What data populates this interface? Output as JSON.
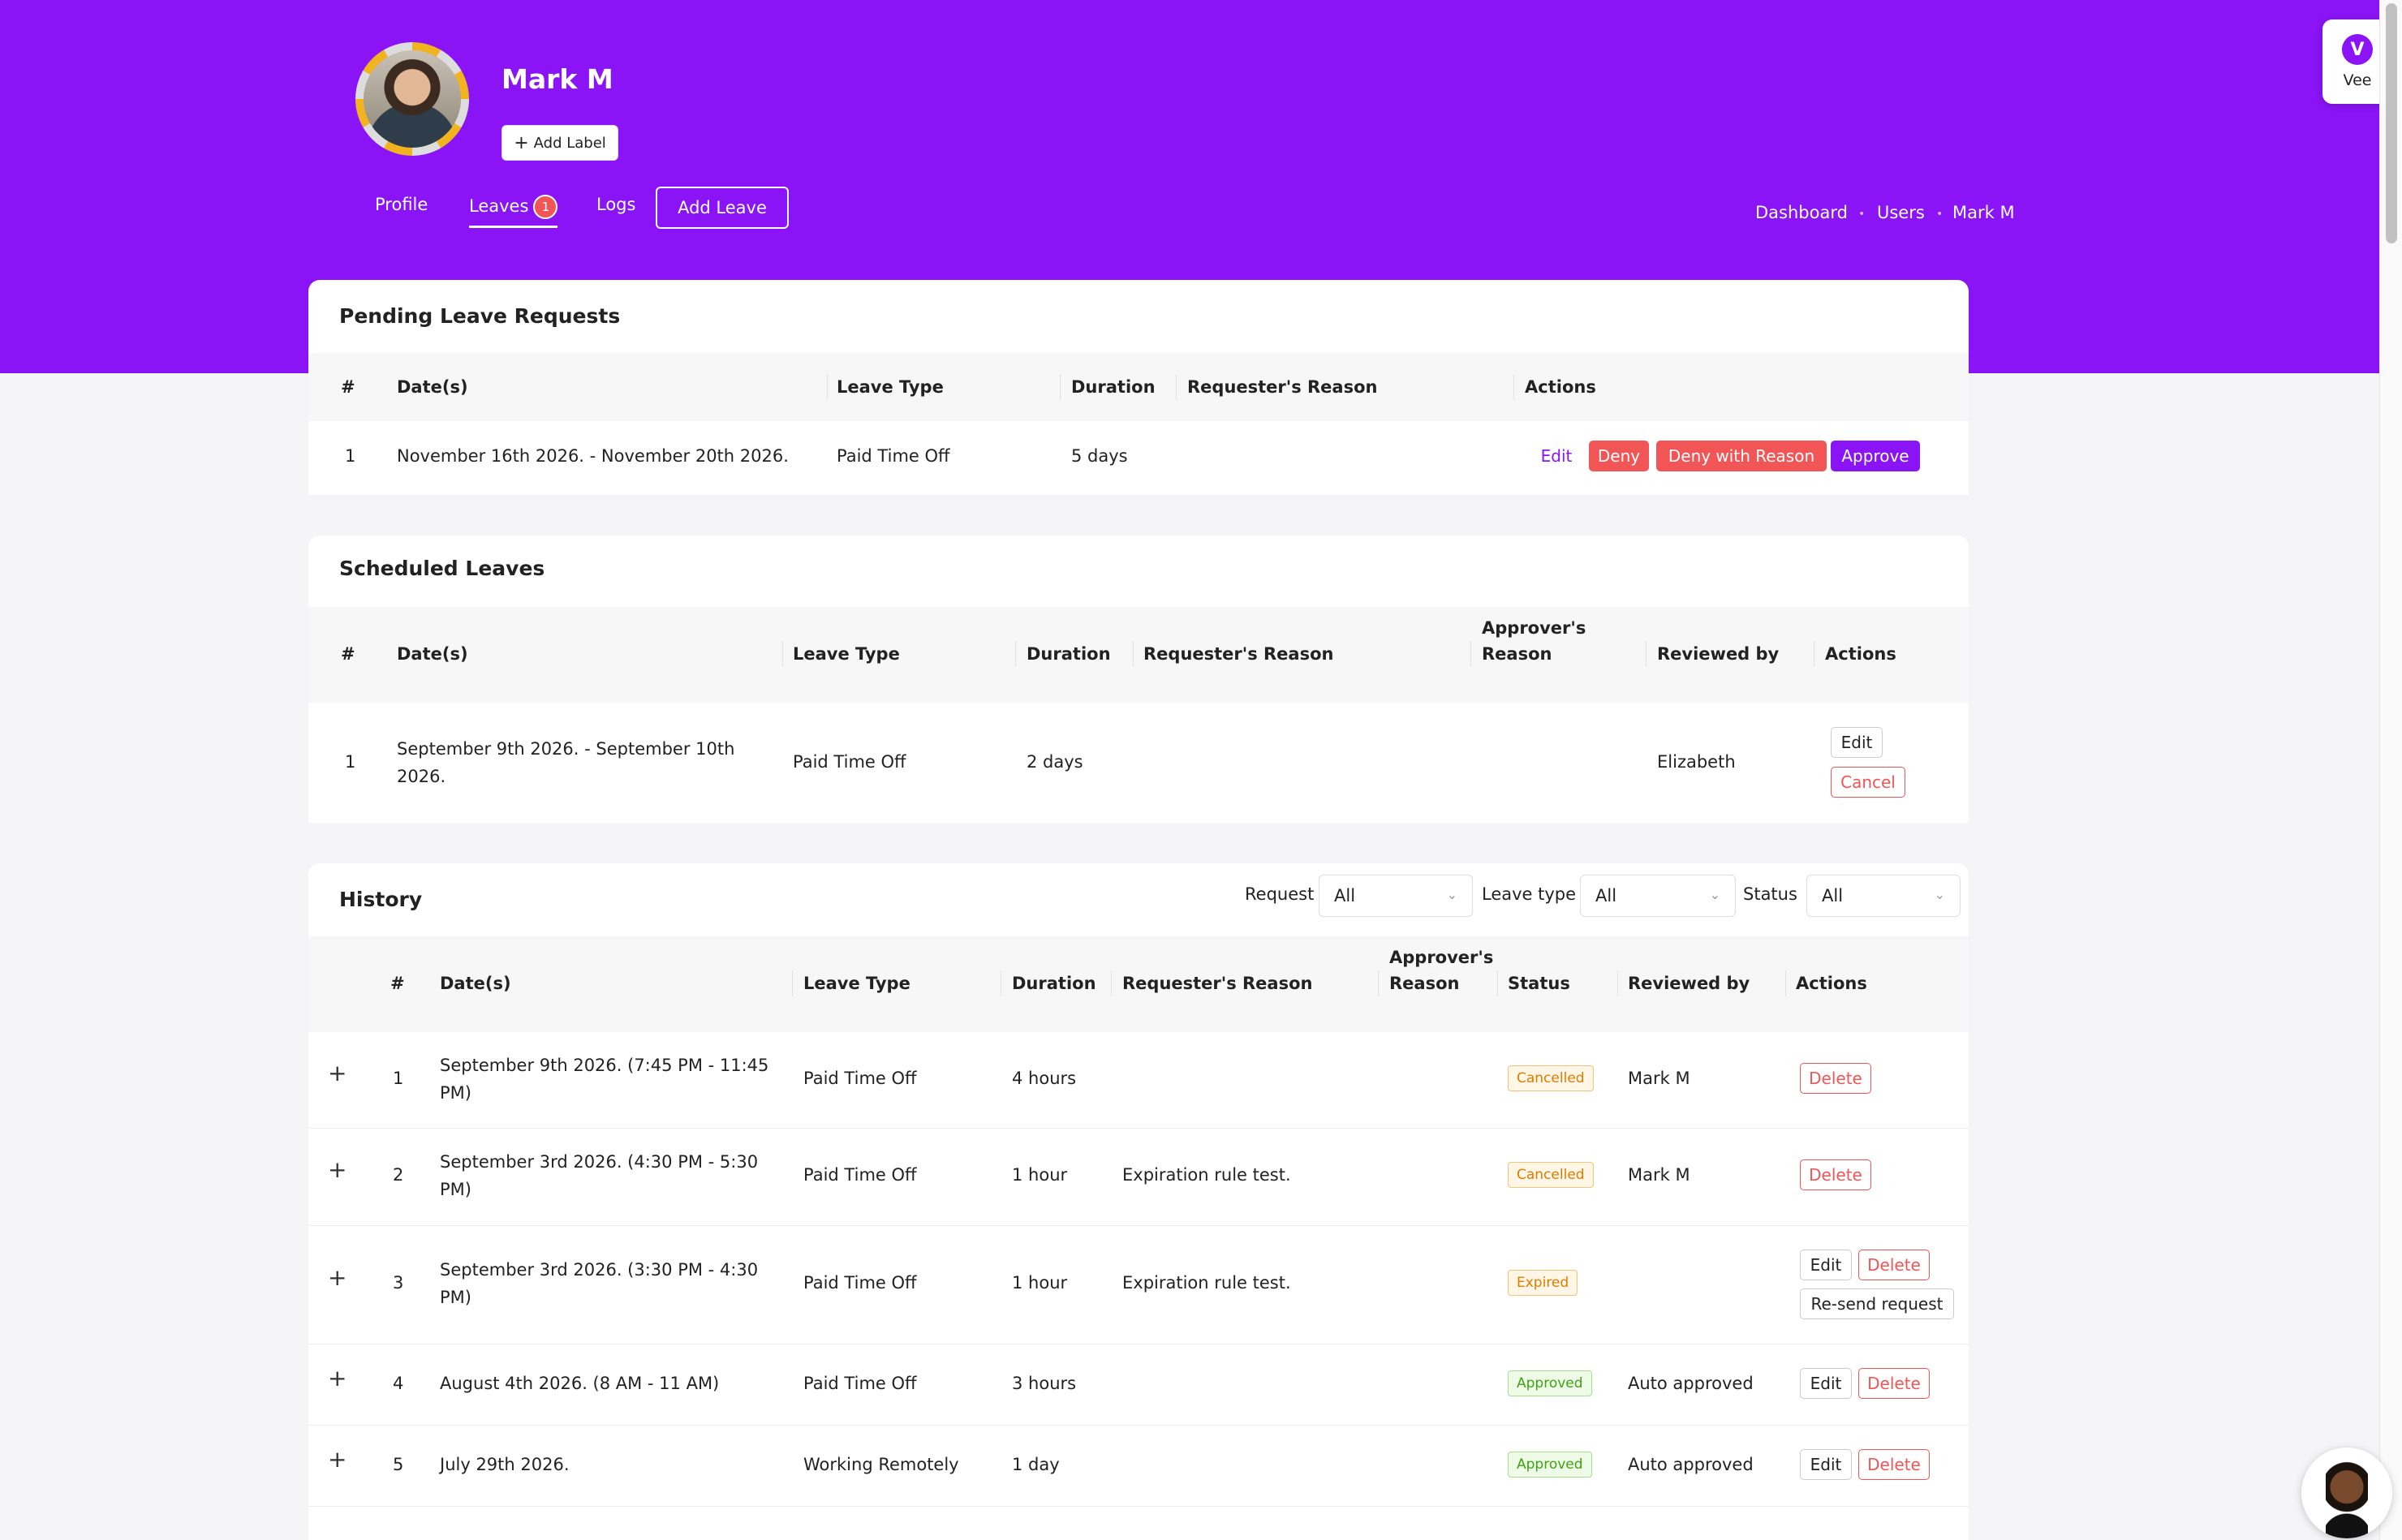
{
  "profile": {
    "name": "Mark M",
    "add_label": "Add Label"
  },
  "tabs": [
    {
      "label": "Profile"
    },
    {
      "label": "Leaves",
      "badge": "1"
    },
    {
      "label": "Logs"
    }
  ],
  "add_leave": "Add Leave",
  "breadcrumb": [
    "Dashboard",
    "Users",
    "Mark M"
  ],
  "vee": {
    "logo": "V",
    "label": "Vee"
  },
  "pending": {
    "title": "Pending Leave Requests",
    "headers": [
      "#",
      "Date(s)",
      "Leave Type",
      "Duration",
      "Requester's Reason",
      "Actions"
    ],
    "rows": [
      {
        "num": "1",
        "dates": "November 16th 2026. - November 20th 2026.",
        "type": "Paid Time Off",
        "duration": "5 days",
        "reason": ""
      }
    ],
    "actions": {
      "edit": "Edit",
      "deny": "Deny",
      "deny_reason": "Deny with Reason",
      "approve": "Approve"
    }
  },
  "scheduled": {
    "title": "Scheduled Leaves",
    "headers": [
      "#",
      "Date(s)",
      "Leave Type",
      "Duration",
      "Requester's Reason",
      "Approver's Reason",
      "Reviewed by",
      "Actions"
    ],
    "rows": [
      {
        "num": "1",
        "dates": "September 9th 2026. - September 10th 2026.",
        "type": "Paid Time Off",
        "duration": "2 days",
        "reason": "",
        "approver_reason": "",
        "reviewed_by": "Elizabeth",
        "edit": "Edit",
        "cancel": "Cancel"
      }
    ]
  },
  "history": {
    "title": "History",
    "filters": [
      {
        "label": "Request",
        "value": "All"
      },
      {
        "label": "Leave type",
        "value": "All"
      },
      {
        "label": "Status",
        "value": "All"
      }
    ],
    "headers": [
      "#",
      "Date(s)",
      "Leave Type",
      "Duration",
      "Requester's Reason",
      "Approver's Reason",
      "Status",
      "Reviewed by",
      "Actions"
    ],
    "rows": [
      {
        "num": "1",
        "dates": "September 9th 2026.  (7:45 PM - 11:45 PM)",
        "type": "Paid Time Off",
        "duration": "4 hours",
        "reason": "",
        "status": "Cancelled",
        "reviewed_by": "Mark M"
      },
      {
        "num": "2",
        "dates": "September 3rd 2026.  (4:30 PM - 5:30 PM)",
        "type": "Paid Time Off",
        "duration": "1 hour",
        "reason": "Expiration rule test.",
        "status": "Cancelled",
        "reviewed_by": "Mark M"
      },
      {
        "num": "3",
        "dates": "September 3rd 2026.  (3:30 PM - 4:30 PM)",
        "type": "Paid Time Off",
        "duration": "1 hour",
        "reason": "Expiration rule test.",
        "status": "Expired",
        "reviewed_by": ""
      },
      {
        "num": "4",
        "dates": "August 4th 2026.  (8 AM - 11 AM)",
        "type": "Paid Time Off",
        "duration": "3 hours",
        "reason": "",
        "status": "Approved",
        "reviewed_by": "Auto approved"
      },
      {
        "num": "5",
        "dates": "July 29th 2026.",
        "type": "Working Remotely",
        "duration": "1 day",
        "reason": "",
        "status": "Approved",
        "reviewed_by": "Auto approved"
      }
    ],
    "actions": {
      "edit": "Edit",
      "delete": "Delete",
      "resend": "Re-send request"
    },
    "expand_symbol": "+"
  },
  "colors": {
    "brand": "#8a14f5",
    "danger": "#f25555",
    "approved": "#3ea315",
    "cancelled": "#e07b00"
  }
}
